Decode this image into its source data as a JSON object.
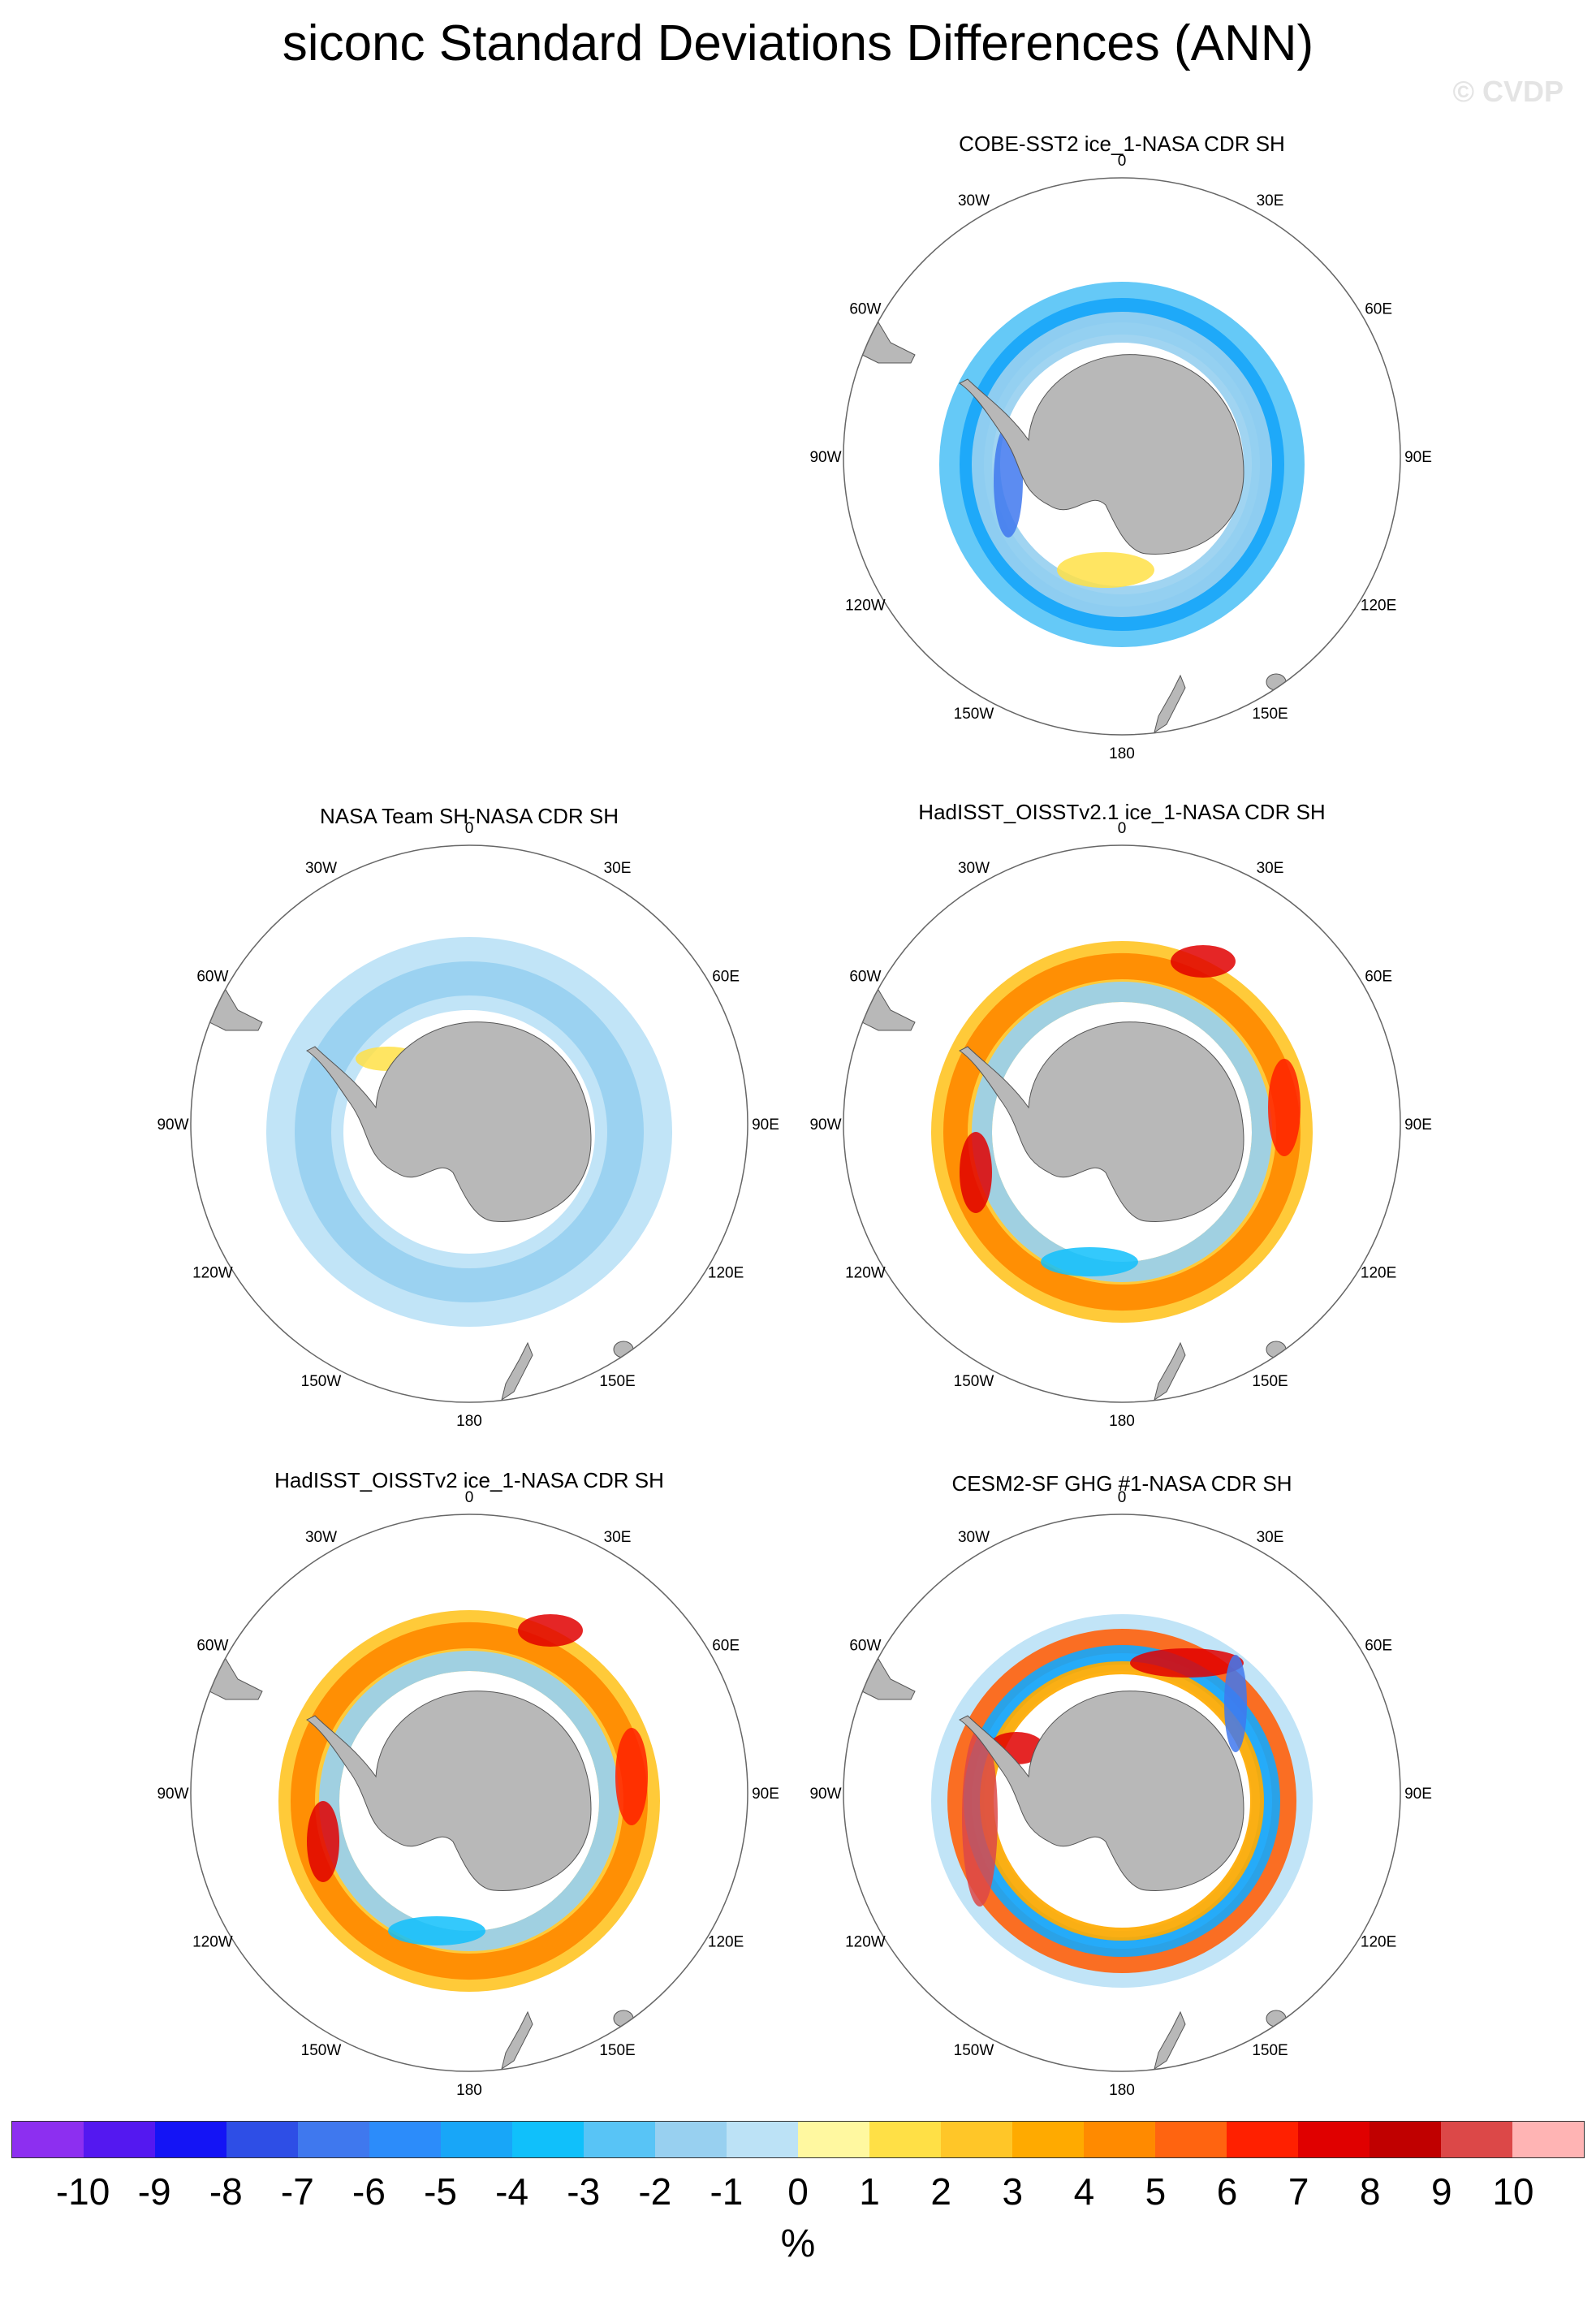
{
  "title": "siconc Standard Deviations Differences (ANN)",
  "watermark": "© CVDP",
  "chart_data": {
    "type": "heatmap",
    "projection": "south polar stereographic",
    "longitude_labels": [
      "0",
      "30E",
      "60E",
      "90E",
      "120E",
      "150E",
      "180",
      "150W",
      "120W",
      "90W",
      "60W",
      "30W"
    ],
    "panels": [
      {
        "title": "COBE-SST2 ice_1-NASA CDR SH",
        "pattern": "blue"
      },
      {
        "title": "NASA Team SH-NASA CDR SH",
        "pattern": "lightblue"
      },
      {
        "title": "HadISST_OISSTv2.1 ice_1-NASA CDR SH",
        "pattern": "mixed-red"
      },
      {
        "title": "HadISST_OISSTv2 ice_1-NASA CDR SH",
        "pattern": "mixed-red"
      },
      {
        "title": "CESM2-SF GHG #1-NASA CDR SH",
        "pattern": "dipole"
      }
    ],
    "colorbar": {
      "labels": [
        "-10",
        "-9",
        "-8",
        "-7",
        "-6",
        "-5",
        "-4",
        "-3",
        "-2",
        "-1",
        "0",
        "1",
        "2",
        "3",
        "4",
        "5",
        "6",
        "7",
        "8",
        "9",
        "10"
      ],
      "colors": [
        "#8d2ff0",
        "#5418f0",
        "#1414f5",
        "#2e4ee6",
        "#3f78ee",
        "#2c8cfa",
        "#18a6f8",
        "#10c0fb",
        "#58c4f6",
        "#98d0f0",
        "#bce2f6",
        "#fff8a0",
        "#ffe046",
        "#ffc628",
        "#ffaa00",
        "#ff8a00",
        "#ff6410",
        "#ff2000",
        "#e00000",
        "#c00000",
        "#dc4848",
        "#ffb4b4"
      ],
      "units": "%"
    }
  }
}
